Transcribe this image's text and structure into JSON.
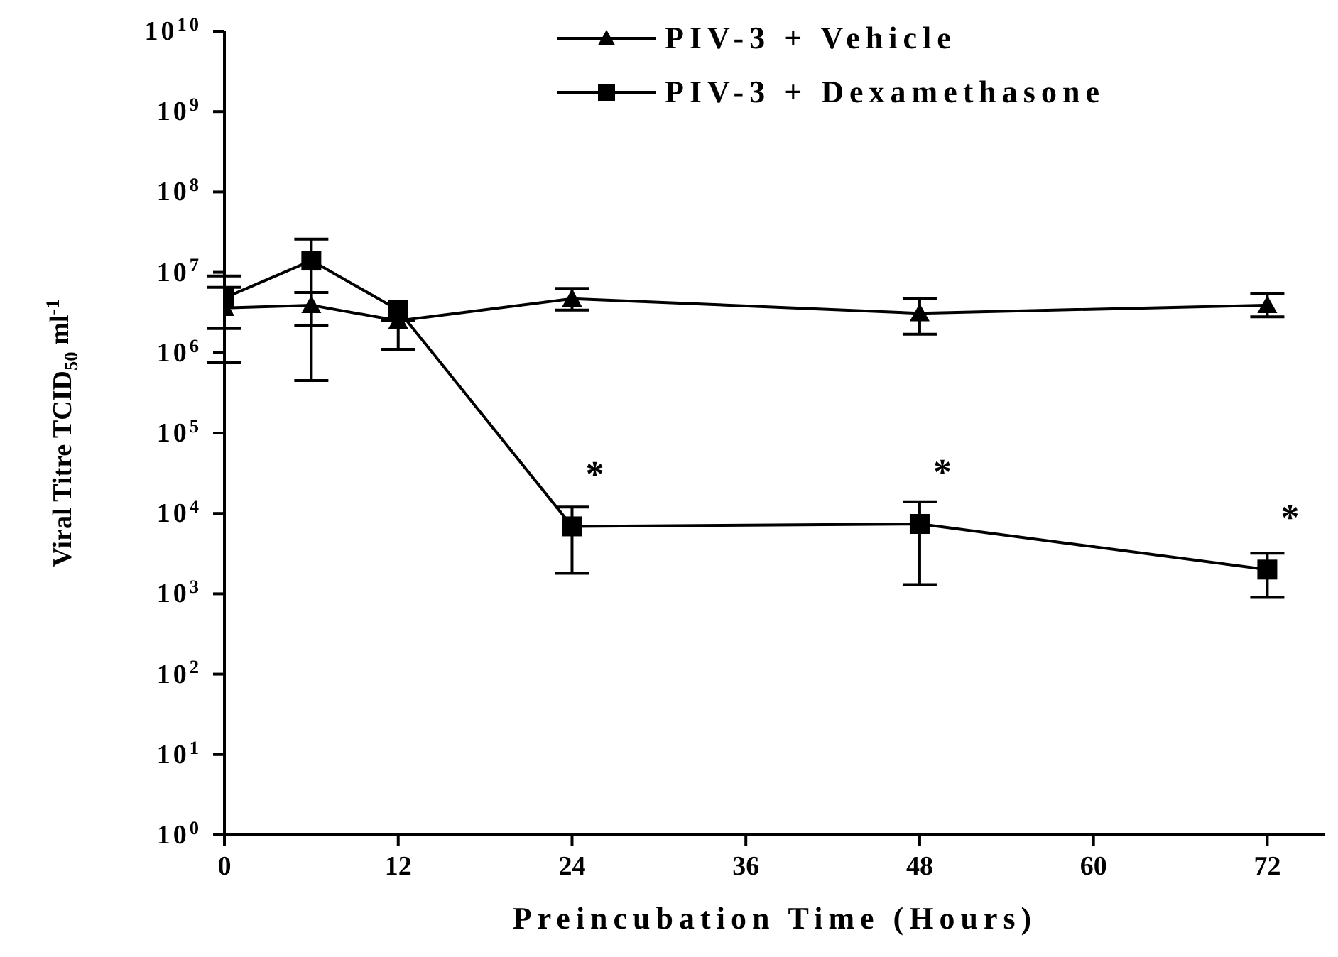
{
  "chart_data": {
    "type": "line",
    "xlabel": "Preincubation Time (Hours)",
    "ylabel": "Viral Titre TCID$_{50}$ ml$^{-1}$",
    "x": [
      0,
      6,
      12,
      24,
      48,
      72
    ],
    "log": "y",
    "xlim": [
      0,
      76
    ],
    "xticks": [
      0,
      12,
      24,
      36,
      48,
      60,
      72
    ],
    "ylim": [
      1,
      10000000000
    ],
    "yticks": [
      {
        "value": 1,
        "label": "10$^{0}$"
      },
      {
        "value": 10,
        "label": "10$^{1}$"
      },
      {
        "value": 100,
        "label": "10$^{2}$"
      },
      {
        "value": 1000,
        "label": "10$^{3}$"
      },
      {
        "value": 10000,
        "label": "10$^{4}$"
      },
      {
        "value": 100000,
        "label": "10$^{5}$"
      },
      {
        "value": 1000000,
        "label": "10$^{6}$"
      },
      {
        "value": 10000000,
        "label": "10$^{7}$"
      },
      {
        "value": 100000000,
        "label": "10$^{8}$"
      },
      {
        "value": 1000000000,
        "label": "10$^{9}$"
      },
      {
        "value": 10000000000,
        "label": "10$^{10}$"
      }
    ],
    "grid": false,
    "legend": "top",
    "line_style": "solid",
    "series": [
      {
        "name": "PIV-3 + Vehicle",
        "color": "#000000",
        "marker": "triangle",
        "values": [
          3600000,
          3900000,
          2500000,
          4700000,
          3100000,
          3900000
        ],
        "errors": [
          [
            2000000,
            6500000
          ],
          [
            2200000,
            5600000
          ],
          [
            1100000,
            2500000
          ],
          [
            3400000,
            6300000
          ],
          [
            1700000,
            4700000
          ],
          [
            2800000,
            5400000
          ]
        ]
      },
      {
        "name": "PIV-3 + Dexamethasone",
        "color": "#000000",
        "marker": "square",
        "values": [
          4800000,
          14000000,
          3400000,
          6900,
          7400,
          2000
        ],
        "errors": [
          [
            750000,
            9000000
          ],
          [
            450000,
            26000000
          ],
          null,
          [
            1800,
            12000
          ],
          [
            1300,
            14000
          ],
          [
            900,
            3200
          ]
        ]
      }
    ],
    "annotations": [
      {
        "text": "*",
        "x": 24,
        "y": 6900
      },
      {
        "text": "*",
        "x": 48,
        "y": 7400
      },
      {
        "text": "*",
        "x": 72,
        "y": 2000
      }
    ]
  }
}
